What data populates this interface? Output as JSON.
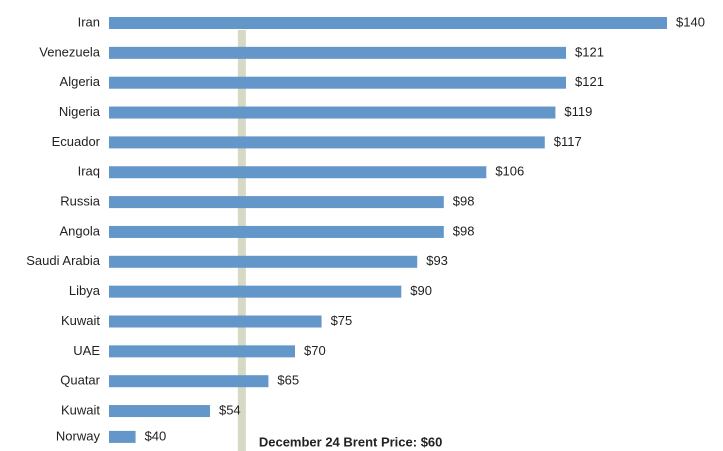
{
  "chart_data": {
    "type": "bar",
    "orientation": "horizontal",
    "categories": [
      "Iran",
      "Venezuela",
      "Algeria",
      "Nigeria",
      "Ecuador",
      "Iraq",
      "Russia",
      "Angola",
      "Saudi Arabia",
      "Libya",
      "Kuwait",
      "UAE",
      "Quatar",
      "Kuwait",
      "Norway"
    ],
    "values": [
      140,
      121,
      121,
      119,
      117,
      106,
      98,
      98,
      93,
      90,
      75,
      70,
      65,
      54,
      40
    ],
    "value_labels": [
      "$140",
      "$121",
      "$121",
      "$119",
      "$117",
      "$106",
      "$98",
      "$98",
      "$93",
      "$90",
      "$75",
      "$70",
      "$65",
      "$54",
      "$40"
    ],
    "color": "#6397c9",
    "xlim": [
      35,
      140
    ],
    "reference_line": {
      "value": 60,
      "label": "December 24 Brent Price: $60",
      "color": "#d6d9c3"
    }
  }
}
